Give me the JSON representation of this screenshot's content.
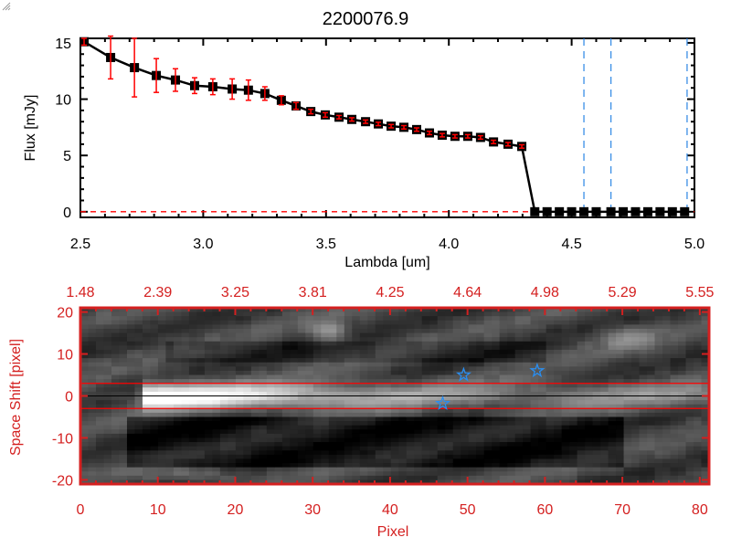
{
  "chart_data": [
    {
      "type": "line",
      "title": "2200076.9",
      "xlabel": "Lambda [um]",
      "ylabel": "Flux [mJy]",
      "xlim": [
        2.5,
        5.0
      ],
      "ylim": [
        -0.5,
        15.4
      ],
      "xticks": [
        "2.5",
        "3.0",
        "3.5",
        "4.0",
        "4.5",
        "5.0"
      ],
      "xtick_values": [
        2.5,
        3.0,
        3.5,
        4.0,
        4.5,
        5.0
      ],
      "yticks": [
        "0",
        "5",
        "10",
        "15"
      ],
      "ytick_values": [
        0,
        5,
        10,
        15
      ],
      "series": [
        {
          "name": "flux",
          "x": [
            2.515,
            2.623,
            2.72,
            2.809,
            2.887,
            2.965,
            3.039,
            3.118,
            3.184,
            3.251,
            3.318,
            3.378,
            3.438,
            3.497,
            3.553,
            3.605,
            3.661,
            3.713,
            3.765,
            3.817,
            3.869,
            3.921,
            3.973,
            4.025,
            4.077,
            4.129,
            4.182,
            4.241,
            4.297,
            4.35,
            4.4,
            4.45,
            4.5,
            4.55,
            4.6,
            4.66,
            4.71,
            4.76,
            4.81,
            4.86,
            4.91,
            4.96
          ],
          "y": [
            15.1,
            13.7,
            12.8,
            12.1,
            11.7,
            11.2,
            11.1,
            10.9,
            10.8,
            10.5,
            9.9,
            9.4,
            8.9,
            8.6,
            8.4,
            8.2,
            8.0,
            7.8,
            7.6,
            7.5,
            7.3,
            7.0,
            6.8,
            6.7,
            6.7,
            6.6,
            6.2,
            6.0,
            5.8,
            0,
            0,
            0,
            0,
            0,
            0,
            0,
            0,
            0,
            0,
            0,
            0,
            0
          ],
          "err": [
            0.3,
            1.9,
            2.6,
            1.5,
            1.0,
            0.7,
            0.7,
            0.9,
            0.9,
            0.6,
            0.4,
            0.3,
            0.2,
            0.2,
            0.15,
            0.15,
            0.15,
            0.15,
            0.15,
            0.15,
            0.15,
            0.15,
            0.15,
            0.15,
            0.15,
            0.15,
            0.15,
            0.15,
            0.15,
            0,
            0,
            0,
            0,
            0,
            0,
            0,
            0,
            0,
            0,
            0,
            0,
            0
          ]
        }
      ],
      "vlines": [
        4.55,
        4.66,
        4.97
      ],
      "hline": 0,
      "colors": {
        "line": "#000000",
        "error": "#ff0000",
        "vline": "#3a8ee6",
        "hline": "#ff0000"
      }
    },
    {
      "type": "heatmap",
      "xlabel": "Pixel",
      "ylabel": "Space Shift [pixel]",
      "xlim": [
        0,
        81.2
      ],
      "ylim": [
        -21,
        21
      ],
      "xticks": [
        "0",
        "10",
        "20",
        "30",
        "40",
        "50",
        "60",
        "70",
        "80"
      ],
      "xtick_values": [
        0,
        10,
        20,
        30,
        40,
        50,
        60,
        70,
        80
      ],
      "top_xticks": [
        "1.48",
        "2.39",
        "3.25",
        "3.81",
        "4.25",
        "4.64",
        "4.98",
        "5.29",
        "5.55"
      ],
      "yticks": [
        "20",
        "10",
        "0",
        "-10",
        "-20"
      ],
      "ytick_values": [
        20,
        10,
        0,
        -10,
        -20
      ],
      "aperture": [
        -3,
        3
      ],
      "center_line": 0,
      "stars": [
        {
          "x": 49.5,
          "y": 5
        },
        {
          "x": 59,
          "y": 6
        },
        {
          "x": 46.8,
          "y": -1.8
        }
      ],
      "colors": {
        "axis": "#d42020",
        "aperture": "#ff0000",
        "star": "#2a8ef0"
      }
    }
  ]
}
